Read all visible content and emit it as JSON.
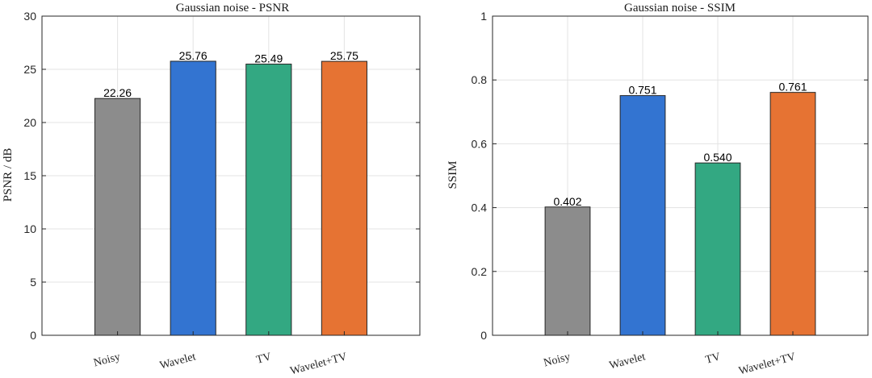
{
  "chart_data": [
    {
      "type": "bar",
      "title": "Gaussian noise - PSNR",
      "xlabel": "",
      "ylabel": "PSNR / dB",
      "categories": [
        "Noisy",
        "Wavelet",
        "TV",
        "Wavelet+TV"
      ],
      "values": [
        22.26,
        25.76,
        25.49,
        25.75
      ],
      "value_labels": [
        "22.26",
        "25.76",
        "25.49",
        "25.75"
      ],
      "colors": [
        "#8c8c8c",
        "#3374d1",
        "#33a882",
        "#e67333"
      ],
      "ylim": [
        0,
        30
      ],
      "yticks": [
        0,
        5,
        10,
        15,
        20,
        25,
        30
      ],
      "ytick_labels": [
        "0",
        "5",
        "10",
        "15",
        "20",
        "25",
        "30"
      ],
      "grid": true
    },
    {
      "type": "bar",
      "title": "Gaussian noise - SSIM",
      "xlabel": "",
      "ylabel": "SSIM",
      "categories": [
        "Noisy",
        "Wavelet",
        "TV",
        "Wavelet+TV"
      ],
      "values": [
        0.402,
        0.751,
        0.54,
        0.761
      ],
      "value_labels": [
        "0.402",
        "0.751",
        "0.540",
        "0.761"
      ],
      "colors": [
        "#8c8c8c",
        "#3374d1",
        "#33a882",
        "#e67333"
      ],
      "ylim": [
        0,
        1
      ],
      "yticks": [
        0,
        0.2,
        0.4,
        0.6,
        0.8,
        1
      ],
      "ytick_labels": [
        "0",
        "0.2",
        "0.4",
        "0.6",
        "0.8",
        "1"
      ],
      "grid": true
    }
  ]
}
